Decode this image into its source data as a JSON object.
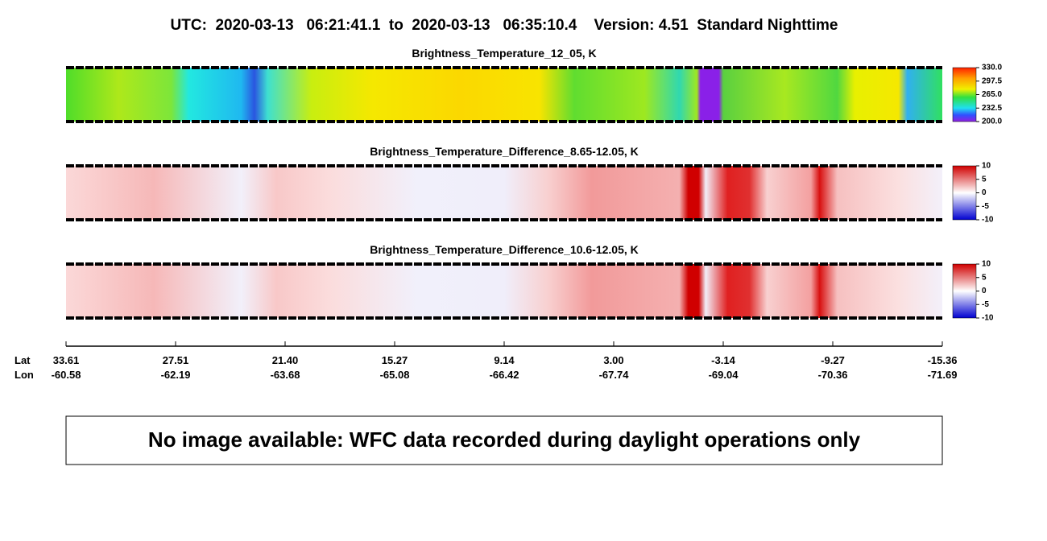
{
  "header": {
    "title": "UTC:  2020-03-13   06:21:41.1  to  2020-03-13   06:35:10.4    Version: 4.51  Standard Nighttime"
  },
  "panels": [
    {
      "title": "Brightness_Temperature_12_05, K",
      "colorbar": [
        "330.0",
        "297.5",
        "265.0",
        "232.5",
        "200.0"
      ]
    },
    {
      "title": "Brightness_Temperature_Difference_8.65-12.05, K",
      "colorbar": [
        "10",
        "5",
        "0",
        "-5",
        "-10"
      ]
    },
    {
      "title": "Brightness_Temperature_Difference_10.6-12.05, K",
      "colorbar": [
        "10",
        "5",
        "0",
        "-5",
        "-10"
      ]
    }
  ],
  "axis": {
    "lat_title": "Lat",
    "lon_title": "Lon",
    "lat": [
      "33.61",
      "27.51",
      "21.40",
      "15.27",
      "9.14",
      "3.00",
      "-3.14",
      "-9.27",
      "-15.36"
    ],
    "lon": [
      "-60.58",
      "-62.19",
      "-63.68",
      "-65.08",
      "-66.42",
      "-67.74",
      "-69.04",
      "-70.36",
      "-71.69"
    ]
  },
  "message": "No image available: WFC data recorded during daylight operations only"
}
